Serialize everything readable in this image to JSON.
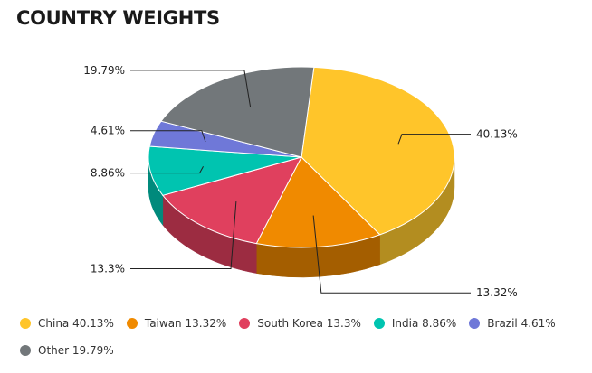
{
  "title": "COUNTRY WEIGHTS",
  "chart_data": {
    "type": "pie",
    "title": "COUNTRY WEIGHTS",
    "three_d": true,
    "series": [
      {
        "name": "China",
        "value": 40.13,
        "label": "40.13%",
        "legend": "China 40.13%",
        "color": "#FFC52A",
        "side_color": "#B38D20"
      },
      {
        "name": "Taiwan",
        "value": 13.32,
        "label": "13.32%",
        "legend": "Taiwan 13.32%",
        "color": "#F08A00",
        "side_color": "#A45E00"
      },
      {
        "name": "South Korea",
        "value": 13.3,
        "label": "13.3%",
        "legend": "South Korea 13.3%",
        "color": "#E0405E",
        "side_color": "#9C2C41"
      },
      {
        "name": "India",
        "value": 8.86,
        "label": "8.86%",
        "legend": "India 8.86%",
        "color": "#00C4B0",
        "side_color": "#008A7C"
      },
      {
        "name": "Brazil",
        "value": 4.61,
        "label": "4.61%",
        "legend": "Brazil 4.61%",
        "color": "#6F78D8",
        "side_color": "#4D5497"
      },
      {
        "name": "Other",
        "value": 19.79,
        "label": "19.79%",
        "legend": "Other 19.79%",
        "color": "#72777A",
        "side_color": "#505355"
      }
    ],
    "legend_position": "bottom"
  }
}
